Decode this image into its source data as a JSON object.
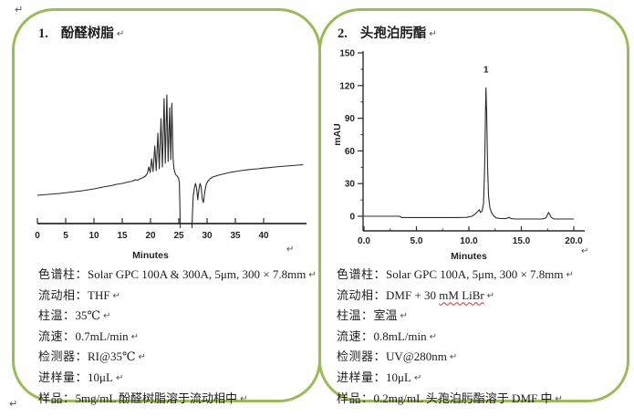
{
  "page": {
    "pilcrow": "↵",
    "accent_color": "#9bbb59",
    "background": "#ffffff"
  },
  "panels": [
    {
      "number": "1.",
      "title": "酚醛树脂",
      "params": [
        {
          "label": "色谱柱：",
          "value": "Solar GPC 100A & 300A, 5μm, 300 × 7.8mm"
        },
        {
          "label": "流动相：",
          "value": "THF"
        },
        {
          "label": "柱温：",
          "value": "35℃"
        },
        {
          "label": "流速：",
          "value": "0.7mL/min"
        },
        {
          "label": "检测器：",
          "value": "RI@35℃"
        },
        {
          "label": "进样量：",
          "value": "10μL"
        },
        {
          "label": "样品：",
          "value": "5mg/mL 酚醛树脂溶于流动相中"
        }
      ]
    },
    {
      "number": "2.",
      "title": "头孢泊肟酯",
      "params": [
        {
          "label": "色谱柱：",
          "value": "Solar GPC 100A, 5μm, 300 × 7.8mm"
        },
        {
          "label": "流动相：",
          "value": "DMF + 30 ",
          "value_misspelled": "mM LiBr"
        },
        {
          "label": "柱温：",
          "value": "室温"
        },
        {
          "label": "流速：",
          "value": "0.8mL/min"
        },
        {
          "label": "检测器：",
          "value": "UV@280nm"
        },
        {
          "label": "进样量：",
          "value": "10μL"
        },
        {
          "label": "样品：",
          "value": "0.2mg/mL 头孢泊肟酯溶于 DMF 中"
        }
      ]
    }
  ],
  "chart_data": [
    {
      "type": "line",
      "id": "phenolic-resin-gpc",
      "xlabel": "Minutes",
      "ylabel": "",
      "xlim": [
        0,
        47.5
      ],
      "x_ticks": [
        {
          "v": 0,
          "label": "0"
        },
        {
          "v": 5,
          "label": "5"
        },
        {
          "v": 10,
          "label": "10"
        },
        {
          "v": 15,
          "label": "15"
        },
        {
          "v": 20,
          "label": "20"
        },
        {
          "v": 25,
          "label": "25"
        },
        {
          "v": 30,
          "label": "30"
        },
        {
          "v": 35,
          "label": "35"
        },
        {
          "v": 40,
          "label": "40"
        }
      ],
      "y_axis_visible": false,
      "series": [
        {
          "name": "RI signal",
          "points": [
            [
              0,
              31
            ],
            [
              2,
              32
            ],
            [
              4,
              33
            ],
            [
              6,
              34.5
            ],
            [
              8,
              36
            ],
            [
              10,
              38
            ],
            [
              12,
              40.5
            ],
            [
              13,
              41.5
            ],
            [
              14,
              43
            ],
            [
              15,
              44
            ],
            [
              16,
              45.5
            ],
            [
              16.8,
              46.5
            ],
            [
              17.3,
              48
            ],
            [
              17.7,
              47.5
            ],
            [
              18.2,
              49
            ],
            [
              18.7,
              50.5
            ],
            [
              19.1,
              52
            ],
            [
              19.45,
              55
            ],
            [
              19.7,
              62
            ],
            [
              19.95,
              56
            ],
            [
              20.2,
              71
            ],
            [
              20.45,
              57
            ],
            [
              20.75,
              85
            ],
            [
              21.0,
              58
            ],
            [
              21.3,
              99
            ],
            [
              21.55,
              60
            ],
            [
              21.85,
              115
            ],
            [
              22.1,
              62
            ],
            [
              22.4,
              137
            ],
            [
              22.62,
              66
            ],
            [
              22.88,
              141
            ],
            [
              23.12,
              68
            ],
            [
              23.38,
              127
            ],
            [
              23.58,
              70
            ],
            [
              23.78,
              132
            ],
            [
              23.98,
              72
            ],
            [
              24.15,
              60
            ],
            [
              24.4,
              54
            ],
            [
              24.7,
              52
            ],
            [
              24.95,
              50
            ],
            [
              25.1,
              45
            ],
            [
              25.2,
              20
            ],
            [
              25.28,
              -12
            ],
            [
              27.3,
              -12
            ],
            [
              27.42,
              12
            ],
            [
              27.55,
              30
            ],
            [
              27.75,
              39
            ],
            [
              27.95,
              44
            ],
            [
              28.15,
              39
            ],
            [
              28.35,
              26
            ],
            [
              28.55,
              37
            ],
            [
              28.75,
              44
            ],
            [
              28.95,
              40
            ],
            [
              29.15,
              27
            ],
            [
              29.35,
              23
            ],
            [
              29.6,
              35
            ],
            [
              29.85,
              43
            ],
            [
              30.1,
              46
            ],
            [
              30.5,
              49
            ],
            [
              31,
              51
            ],
            [
              32,
              53
            ],
            [
              33,
              54.5
            ],
            [
              34,
              56
            ],
            [
              35,
              57
            ],
            [
              36,
              58
            ],
            [
              37,
              58.8
            ],
            [
              38,
              59.5
            ],
            [
              39,
              60
            ],
            [
              40,
              60.8
            ],
            [
              41,
              61.3
            ],
            [
              42,
              62
            ],
            [
              43,
              62.5
            ],
            [
              44,
              63
            ],
            [
              45,
              63.5
            ],
            [
              46,
              64
            ],
            [
              47,
              64.5
            ]
          ]
        }
      ]
    },
    {
      "type": "line",
      "id": "cefpodoxime-proxetil-uv",
      "xlabel": "Minutes",
      "ylabel": "mAU",
      "xlim": [
        0,
        21
      ],
      "ylim": [
        0,
        150
      ],
      "x_ticks": [
        {
          "v": 0,
          "label": "0.0"
        },
        {
          "v": 5,
          "label": "5.0"
        },
        {
          "v": 10,
          "label": "10.0"
        },
        {
          "v": 15,
          "label": "15.0"
        },
        {
          "v": 20,
          "label": "20.0"
        }
      ],
      "x_minor_ticks": [
        2.5,
        7.5,
        12.5,
        17.5
      ],
      "y_ticks": [
        {
          "v": 0,
          "label": "0"
        },
        {
          "v": 30,
          "label": "30"
        },
        {
          "v": 60,
          "label": "60"
        },
        {
          "v": 90,
          "label": "90"
        },
        {
          "v": 120,
          "label": "120"
        },
        {
          "v": 150,
          "label": "150"
        }
      ],
      "y_minor_ticks": [
        15,
        45,
        75,
        105,
        135
      ],
      "peak_labels": [
        {
          "label": "1",
          "x": 11.63,
          "y": 132
        }
      ],
      "series": [
        {
          "name": "UV signal",
          "points": [
            [
              0,
              0
            ],
            [
              1,
              0
            ],
            [
              2,
              0
            ],
            [
              3,
              0
            ],
            [
              3.4,
              0
            ],
            [
              3.6,
              -1.2
            ],
            [
              4,
              -1.2
            ],
            [
              5,
              -1.2
            ],
            [
              6,
              -1.2
            ],
            [
              7,
              -1.2
            ],
            [
              8,
              -1.2
            ],
            [
              9,
              -1.2
            ],
            [
              9.8,
              -1
            ],
            [
              10.3,
              0
            ],
            [
              10.6,
              2
            ],
            [
              10.85,
              4.5
            ],
            [
              11.0,
              6
            ],
            [
              11.1,
              3.5
            ],
            [
              11.25,
              4.5
            ],
            [
              11.4,
              12
            ],
            [
              11.5,
              45
            ],
            [
              11.58,
              95
            ],
            [
              11.63,
              118
            ],
            [
              11.7,
              95
            ],
            [
              11.78,
              45
            ],
            [
              11.88,
              18
            ],
            [
              12.0,
              8
            ],
            [
              12.15,
              3.5
            ],
            [
              12.35,
              0.5
            ],
            [
              12.6,
              -1.5
            ],
            [
              13,
              -2
            ],
            [
              13.5,
              -2.2
            ],
            [
              13.85,
              -1
            ],
            [
              14.0,
              -2.2
            ],
            [
              14.5,
              -2.5
            ],
            [
              15,
              -2.5
            ],
            [
              16,
              -2.5
            ],
            [
              17,
              -2.5
            ],
            [
              17.35,
              -1.5
            ],
            [
              17.6,
              3.5
            ],
            [
              17.85,
              -1
            ],
            [
              18.1,
              -2.5
            ],
            [
              18.5,
              -2.5
            ],
            [
              19,
              -2.5
            ],
            [
              19.5,
              -2.5
            ],
            [
              20,
              -2.5
            ]
          ]
        }
      ]
    }
  ]
}
